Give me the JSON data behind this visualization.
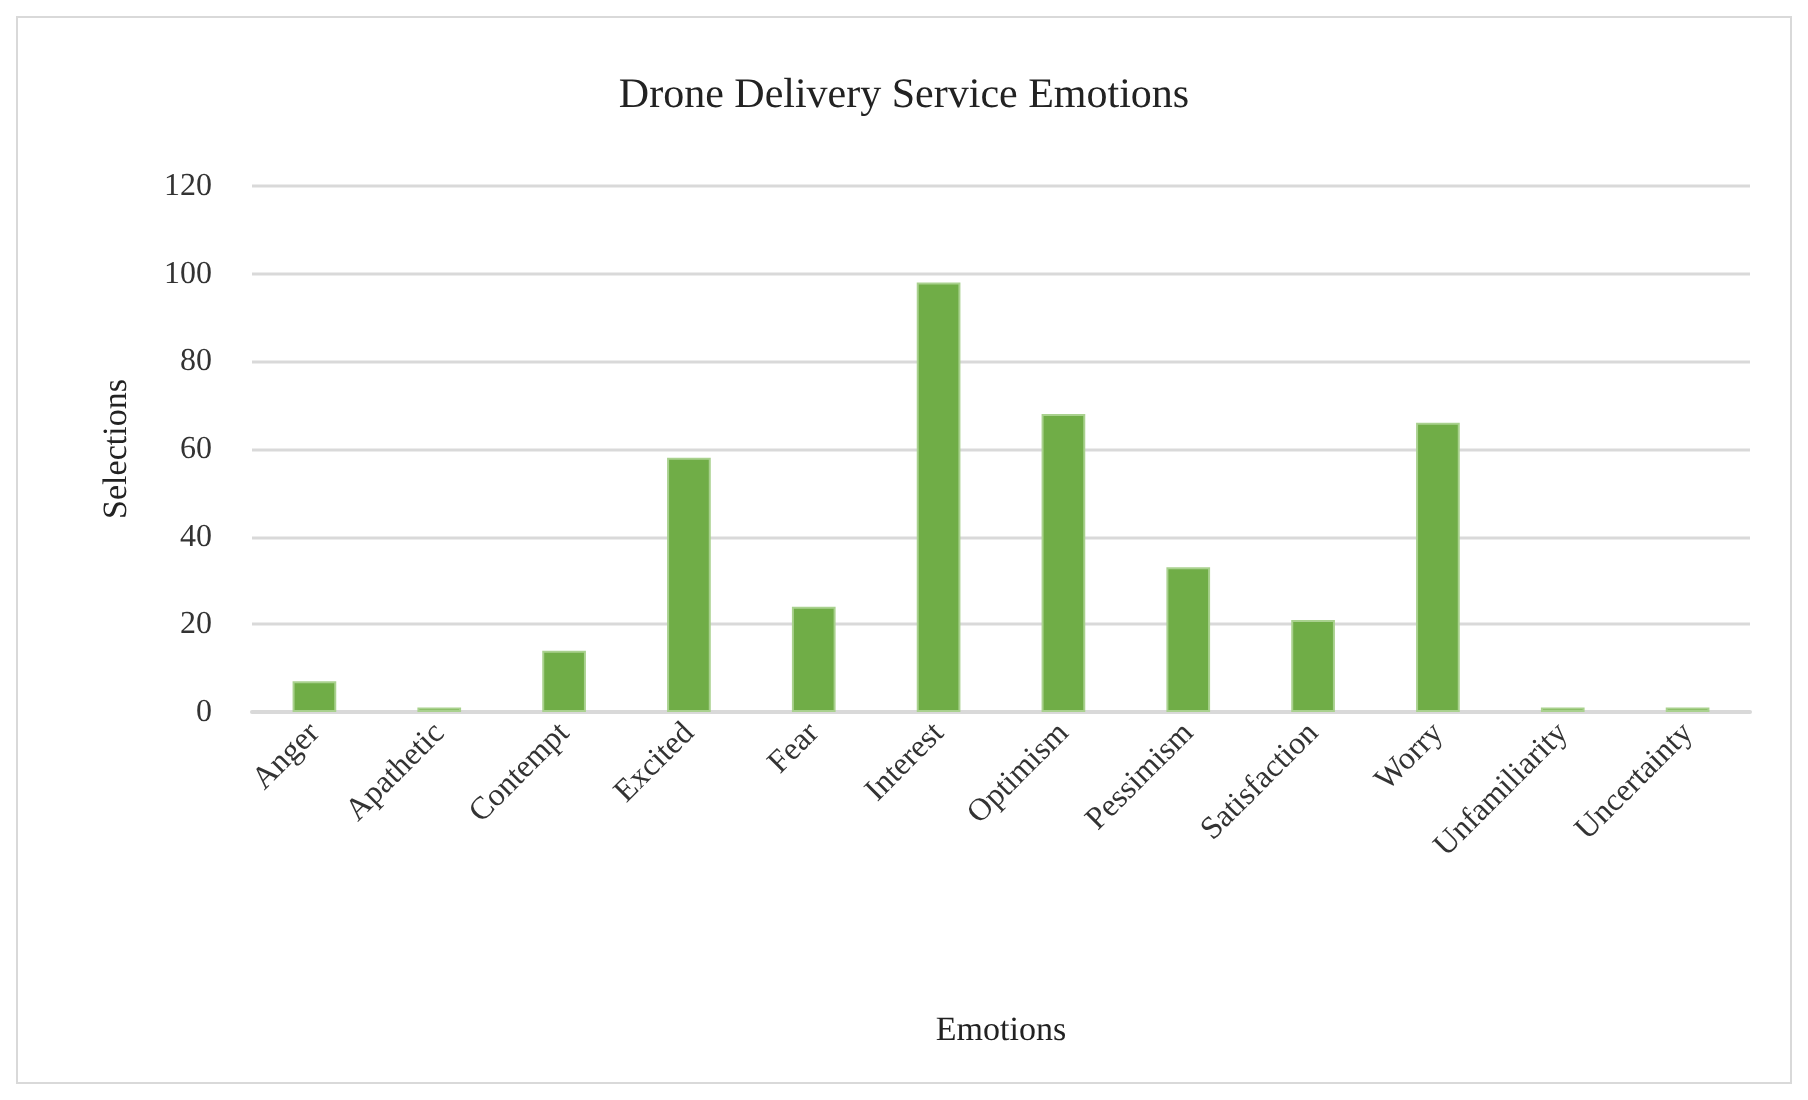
{
  "chart_data": {
    "type": "bar",
    "title": "Drone Delivery Service Emotions",
    "xlabel": "Emotions",
    "ylabel": "Selections",
    "categories": [
      "Anger",
      "Apathetic",
      "Contempt",
      "Excited",
      "Fear",
      "Interest",
      "Optimism",
      "Pessimism",
      "Satisfaction",
      "Worry",
      "Unfamiliarity",
      "Uncertainty"
    ],
    "values": [
      7,
      1,
      14,
      58,
      24,
      98,
      68,
      33,
      21,
      66,
      1,
      1
    ],
    "color": "#70ad47",
    "ylim": [
      0,
      120
    ],
    "yticks": [
      0,
      20,
      40,
      60,
      80,
      100,
      120
    ],
    "grid": "y"
  }
}
